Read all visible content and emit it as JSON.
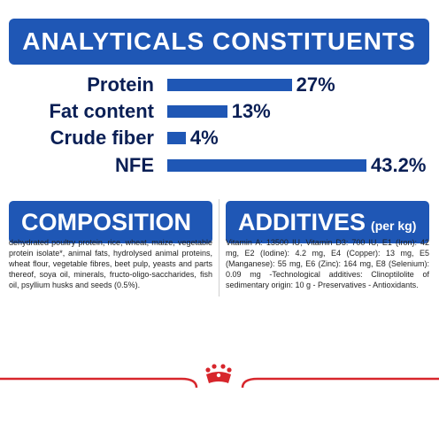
{
  "analytical": {
    "title": "ANALYTICALS CONSTITUENTS",
    "rows": [
      {
        "label": "Protein",
        "value_text": "27%",
        "value": 27
      },
      {
        "label": "Fat content",
        "value_text": "13%",
        "value": 13
      },
      {
        "label": "Crude fiber",
        "value_text": "4%",
        "value": 4
      },
      {
        "label": "NFE",
        "value_text": "43.2%",
        "value": 43.2
      }
    ]
  },
  "composition": {
    "title": "COMPOSITION",
    "text": "dehydrated poultry protein, rice, wheat, maize, vegetable protein isolate*, animal fats, hydrolysed animal proteins, wheat flour, vegetable fibres, beet pulp, yeasts and parts thereof, soya oil, minerals, fructo-oligo-saccharides, fish oil, psyllium husks and seeds (0.5%)."
  },
  "additives": {
    "title": "ADDITIVES",
    "suffix": "(per kg)",
    "text": "Vitamin A: 13500 IU, Vitamin D3: 700 IU, E1 (Iron): 42 mg, E2 (Iodine): 4.2 mg, E4 (Copper): 13 mg, E5 (Manganese): 55 mg, E6 (Zinc): 164 mg, E8 (Selenium): 0.09 mg -Technological additives: Clinoptilolite of sedimentary origin: 10 g - Preservatives - Antioxidants."
  },
  "colors": {
    "brand_blue": "#1f57b5",
    "dark_navy": "#0a1f55",
    "brand_red": "#d7262c"
  },
  "footer": {
    "logo_icon": "royal-canin-crown-icon"
  }
}
